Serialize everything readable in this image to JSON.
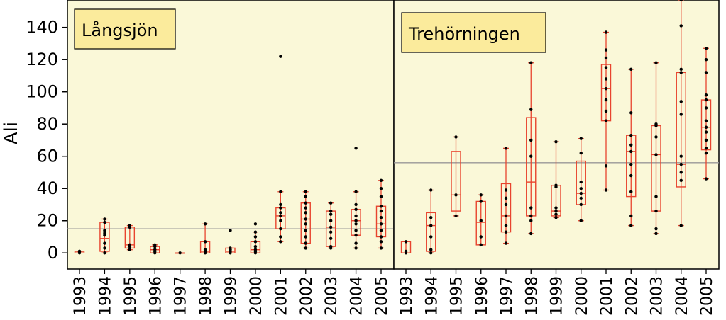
{
  "chart_data": {
    "type": "box",
    "ylabel": "Ali",
    "ylim": [
      -10,
      157
    ],
    "yticks": [
      0,
      20,
      40,
      60,
      80,
      100,
      120,
      140
    ],
    "background_color": "#faf8d8",
    "box_color": "#e8442e",
    "point_color": "#000000",
    "reference_line_color": "#999999",
    "label_box_color": "#fbeb9c",
    "years": [
      "1993",
      "1994",
      "1995",
      "1996",
      "1997",
      "1998",
      "1999",
      "2000",
      "2001",
      "2002",
      "2003",
      "2004",
      "2005"
    ],
    "panels": [
      {
        "name": "Långsjön",
        "reference_line": 15,
        "boxes": [
          {
            "min": 0,
            "q1": 0,
            "median": 1,
            "q3": 1,
            "max": 1,
            "points": [
              0,
              1,
              1
            ]
          },
          {
            "min": 0,
            "q1": 1,
            "median": 9,
            "q3": 19,
            "max": 21,
            "points": [
              0,
              3,
              6,
              11,
              12,
              13,
              14,
              19,
              21
            ]
          },
          {
            "min": 2,
            "q1": 3,
            "median": 5,
            "q3": 16,
            "max": 17,
            "points": [
              2,
              4,
              5,
              16,
              17
            ]
          },
          {
            "min": 0,
            "q1": 0,
            "median": 2,
            "q3": 4,
            "max": 5,
            "points": [
              0,
              1,
              2,
              4,
              5
            ]
          },
          {
            "min": 0,
            "q1": 0,
            "median": 0,
            "q3": 0,
            "max": 0,
            "points": [
              0
            ]
          },
          {
            "min": 0,
            "q1": 0,
            "median": 1,
            "q3": 7,
            "max": 18,
            "points": [
              0,
              1,
              2,
              7,
              18
            ]
          },
          {
            "min": 0,
            "q1": 0,
            "median": 1,
            "q3": 3,
            "max": 3,
            "points": [
              0,
              1,
              2,
              3,
              14
            ]
          },
          {
            "min": 0,
            "q1": 0,
            "median": 2,
            "q3": 7,
            "max": 13,
            "points": [
              0,
              1,
              2,
              4,
              7,
              10,
              13,
              18
            ]
          },
          {
            "min": 7,
            "q1": 15,
            "median": 23,
            "q3": 28,
            "max": 38,
            "points": [
              7,
              10,
              15,
              20,
              23,
              25,
              28,
              30,
              38,
              122
            ]
          },
          {
            "min": 3,
            "q1": 6,
            "median": 21,
            "q3": 31,
            "max": 38,
            "points": [
              3,
              6,
              10,
              14,
              18,
              21,
              25,
              28,
              31,
              35,
              38
            ]
          },
          {
            "min": 3,
            "q1": 4,
            "median": 16,
            "q3": 26,
            "max": 31,
            "points": [
              3,
              4,
              9,
              13,
              16,
              20,
              24,
              26,
              31
            ]
          },
          {
            "min": 3,
            "q1": 11,
            "median": 20,
            "q3": 27,
            "max": 38,
            "points": [
              3,
              6,
              11,
              14,
              18,
              20,
              23,
              27,
              30,
              38,
              65
            ]
          },
          {
            "min": 3,
            "q1": 10,
            "median": 18,
            "q3": 29,
            "max": 45,
            "points": [
              3,
              7,
              10,
              14,
              18,
              22,
              26,
              29,
              35,
              40,
              45
            ]
          }
        ]
      },
      {
        "name": "Trehörningen",
        "reference_line": 56,
        "boxes": [
          {
            "min": 0,
            "q1": 0,
            "median": 0,
            "q3": 7,
            "max": 7,
            "points": [
              0,
              1,
              7
            ]
          },
          {
            "min": 0,
            "q1": 1,
            "median": 17,
            "q3": 25,
            "max": 39,
            "points": [
              0,
              2,
              10,
              17,
              22,
              39
            ]
          },
          {
            "min": 23,
            "q1": 26,
            "median": 36,
            "q3": 63,
            "max": 72,
            "points": [
              23,
              36,
              72
            ]
          },
          {
            "min": 5,
            "q1": 5,
            "median": 19,
            "q3": 32,
            "max": 36,
            "points": [
              5,
              10,
              20,
              32,
              36
            ]
          },
          {
            "min": 6,
            "q1": 13,
            "median": 23,
            "q3": 43,
            "max": 65,
            "points": [
              6,
              13,
              17,
              23,
              30,
              34,
              39,
              65
            ]
          },
          {
            "min": 12,
            "q1": 23,
            "median": 44,
            "q3": 84,
            "max": 118,
            "points": [
              12,
              20,
              23,
              28,
              60,
              70,
              89,
              118
            ]
          },
          {
            "min": 22,
            "q1": 23,
            "median": 26,
            "q3": 42,
            "max": 69,
            "points": [
              22,
              24,
              26,
              28,
              41,
              42,
              69
            ]
          },
          {
            "min": 20,
            "q1": 30,
            "median": 37,
            "q3": 57,
            "max": 71,
            "points": [
              20,
              30,
              34,
              37,
              40,
              44,
              62,
              71
            ]
          },
          {
            "min": 39,
            "q1": 82,
            "median": 102,
            "q3": 117,
            "max": 137,
            "points": [
              39,
              54,
              82,
              88,
              95,
              102,
              108,
              115,
              121,
              126,
              137
            ]
          },
          {
            "min": 17,
            "q1": 35,
            "median": 63,
            "q3": 73,
            "max": 114,
            "points": [
              17,
              23,
              38,
              48,
              55,
              63,
              67,
              73,
              87,
              114
            ]
          },
          {
            "min": 12,
            "q1": 26,
            "median": 61,
            "q3": 79,
            "max": 118,
            "points": [
              12,
              15,
              26,
              35,
              61,
              72,
              79,
              80,
              118
            ]
          },
          {
            "min": 17,
            "q1": 41,
            "median": 55,
            "q3": 112,
            "max": 157,
            "points": [
              17,
              45,
              50,
              55,
              60,
              86,
              94,
              112,
              114,
              141,
              157
            ]
          },
          {
            "min": 46,
            "q1": 64,
            "median": 78,
            "q3": 95,
            "max": 127,
            "points": [
              46,
              62,
              65,
              70,
              75,
              78,
              82,
              90,
              95,
              98,
              112,
              120,
              127
            ]
          }
        ]
      }
    ]
  }
}
